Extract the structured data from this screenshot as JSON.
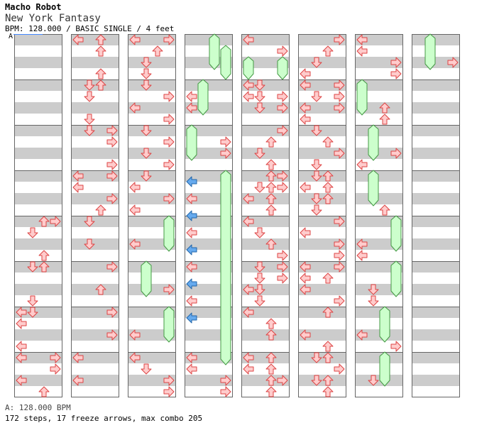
{
  "header": {
    "artist": "Macho Robot",
    "title": "New York Fantasy",
    "info": "BPM: 128.000 / BASIC SINGLE / 4 feet",
    "bpm_marker": "A"
  },
  "colors": {
    "stripe": "#cccccc",
    "arrow_fill": "#ffcccc",
    "arrow_stroke": "#dd4444",
    "freeze_fill": "#ccffcc",
    "freeze_stroke": "#449944",
    "blue_fill": "#66aaee",
    "blue_stroke": "#2266aa",
    "border": "#666666",
    "bpm_line": "#4488ff"
  },
  "footer": {
    "bpm_line": "A: 128.000 BPM",
    "stats": "172 steps, 17 freeze arrows, max combo 205"
  }
}
